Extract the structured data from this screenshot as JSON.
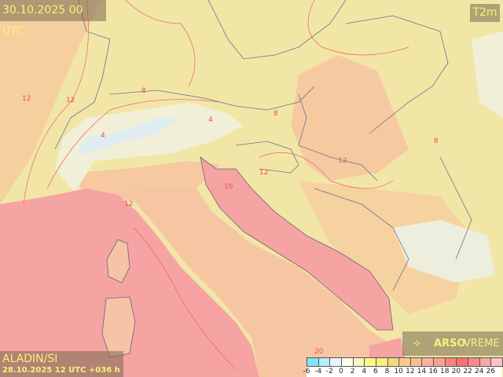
{
  "header": {
    "valid_time": "30.10.2025 00 UTC",
    "parameter": "T2m"
  },
  "model": {
    "name": "ALADIN/SI",
    "run": "28.10.2025 12 UTC +036 h"
  },
  "brand": {
    "icon": "arso-logo-icon",
    "bold": "ARSO",
    "light": "VREME"
  },
  "map": {
    "contour_labels": [
      "12",
      "12",
      "12",
      "8",
      "8",
      "4",
      "4",
      "12",
      "12",
      "16",
      "8",
      "20"
    ]
  },
  "legend": {
    "items": [
      {
        "label": "-6",
        "color": "#7fe4f6"
      },
      {
        "label": "-4",
        "color": "#b6ecfb"
      },
      {
        "label": "-2",
        "color": "#e8f5fd"
      },
      {
        "label": "0",
        "color": "#fdfde8"
      },
      {
        "label": "2",
        "color": "#f8f8c4"
      },
      {
        "label": "4",
        "color": "#fbf98a"
      },
      {
        "label": "6",
        "color": "#f8f07c"
      },
      {
        "label": "8",
        "color": "#f6da7a"
      },
      {
        "label": "10",
        "color": "#f9c893"
      },
      {
        "label": "12",
        "color": "#f9c08f"
      },
      {
        "label": "14",
        "color": "#f9b1a1"
      },
      {
        "label": "16",
        "color": "#f9a190"
      },
      {
        "label": "18",
        "color": "#f88383"
      },
      {
        "label": "20",
        "color": "#f87272"
      },
      {
        "label": "22",
        "color": "#f88a8a"
      },
      {
        "label": "24",
        "color": "#f8a9a9"
      },
      {
        "label": "26",
        "color": "#f9c2c9"
      }
    ]
  }
}
